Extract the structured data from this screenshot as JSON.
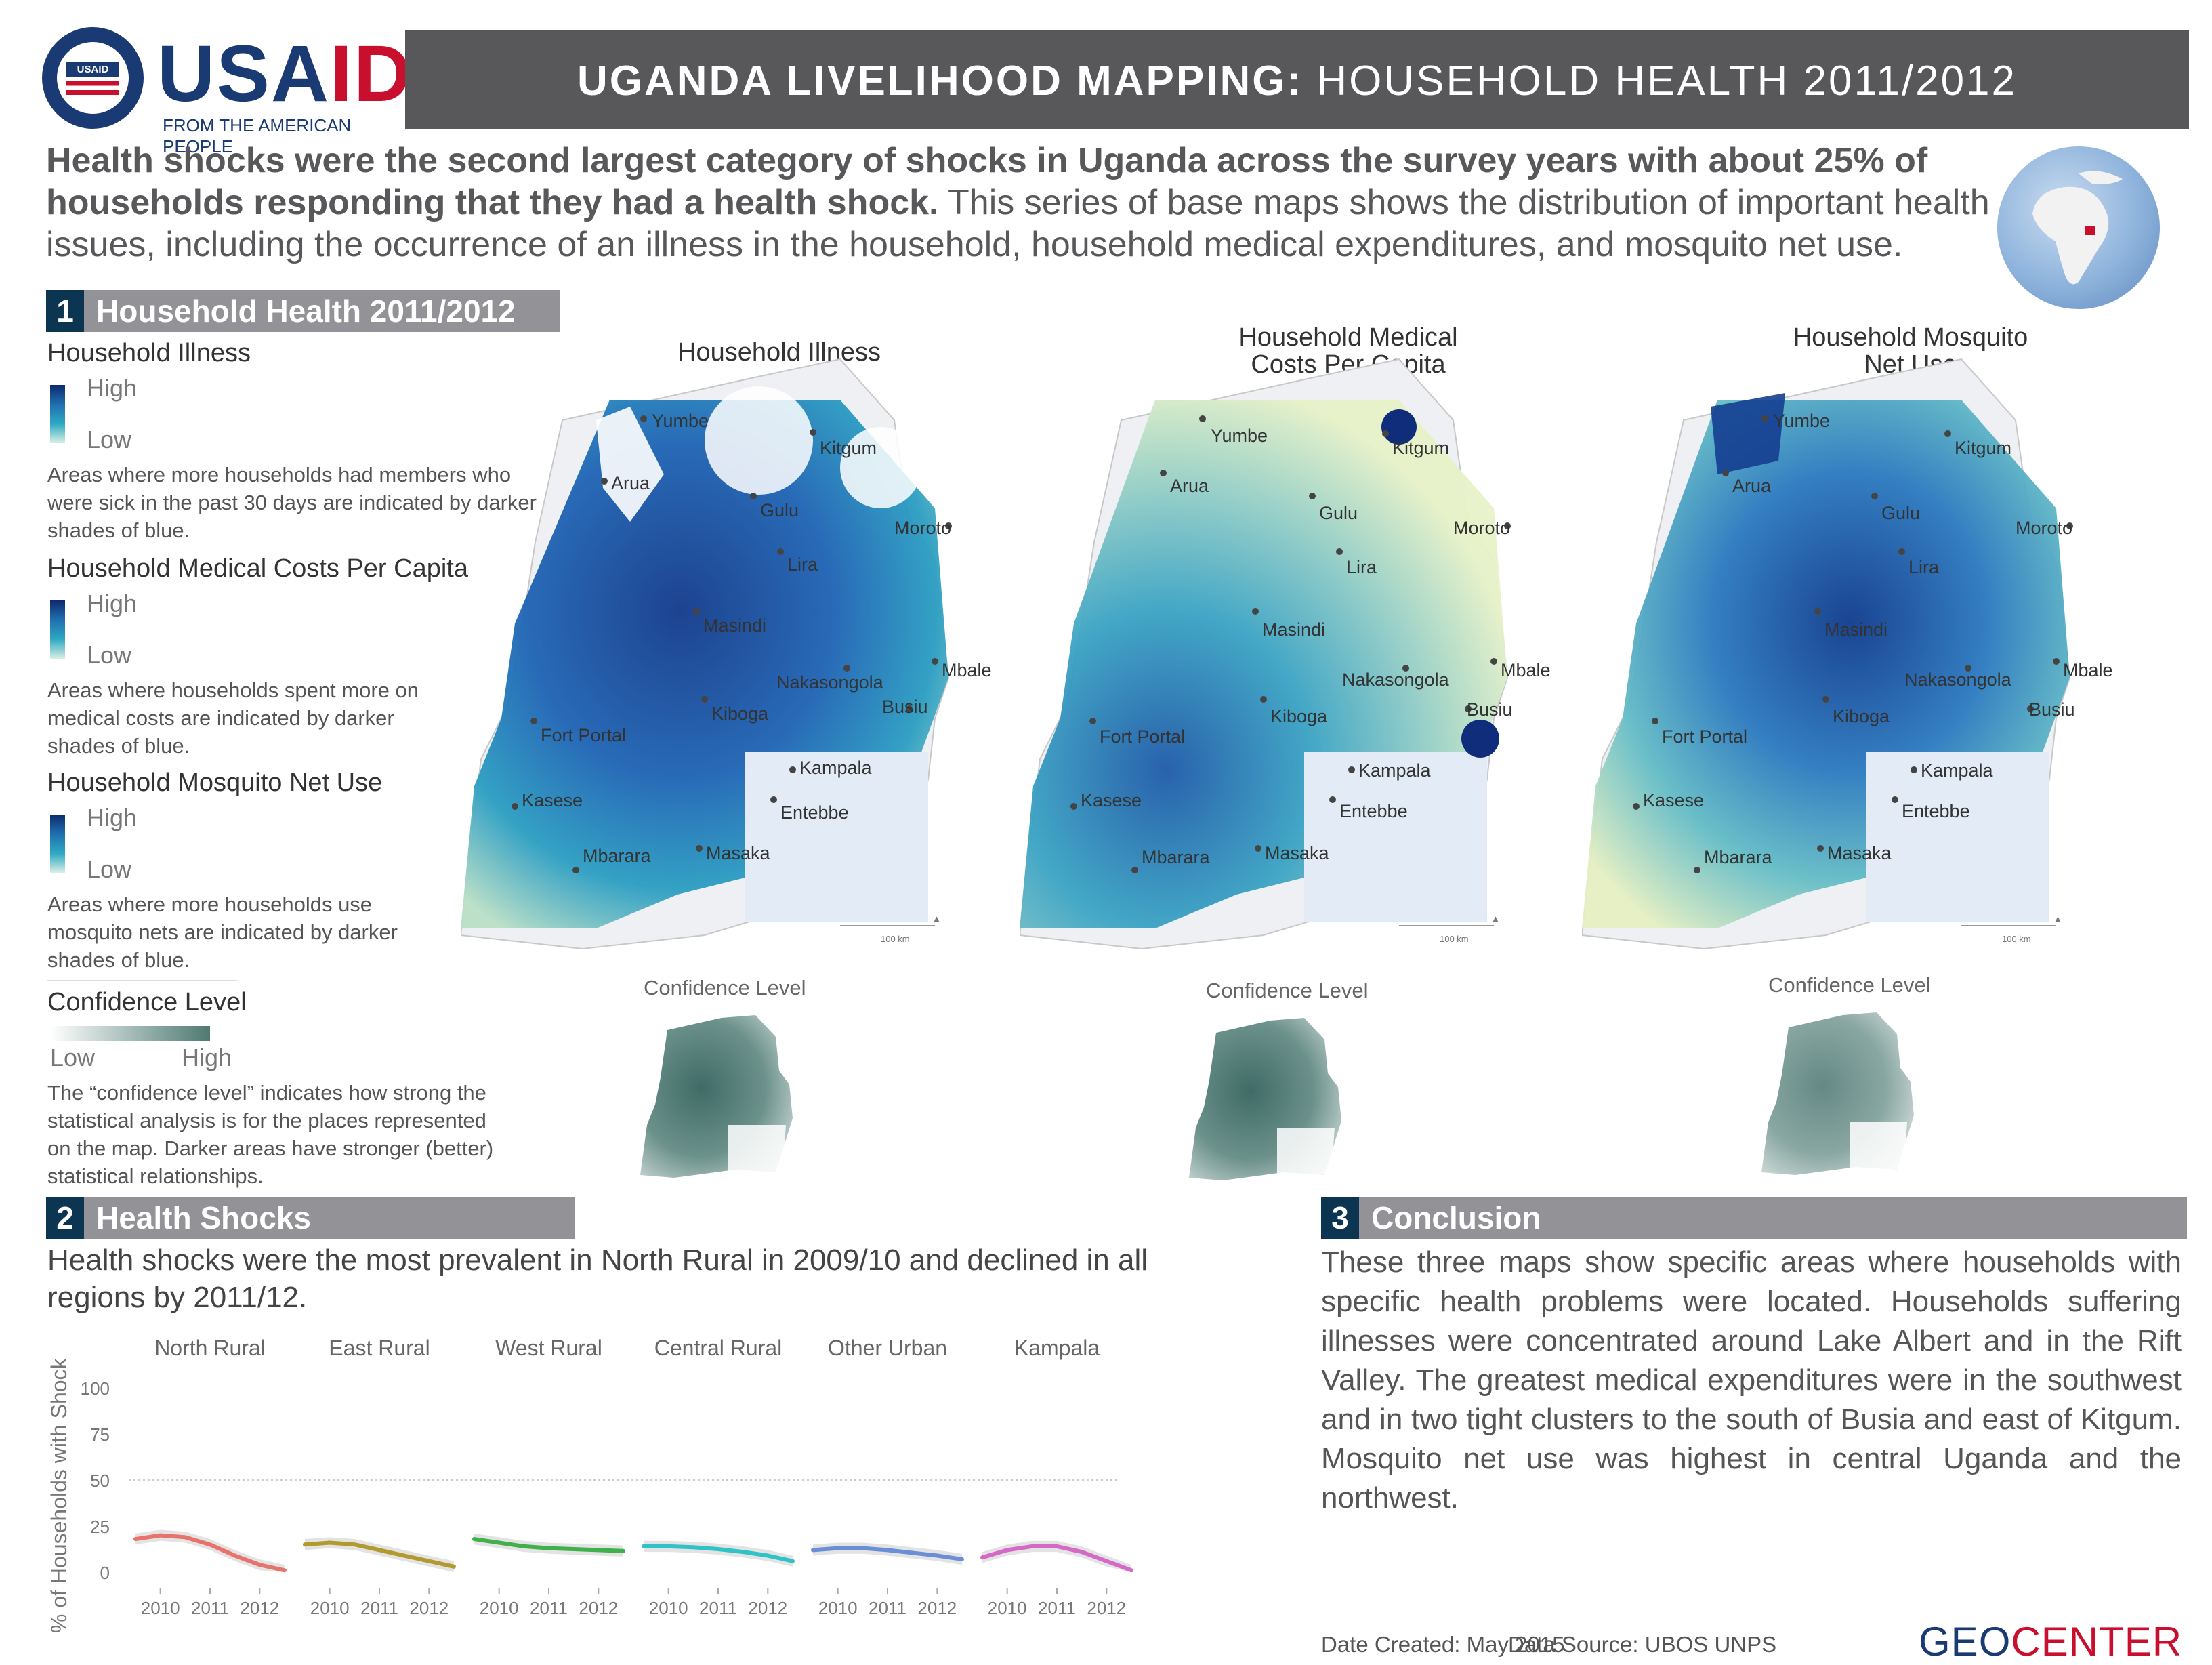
{
  "brand": {
    "logo_text_blue": "USA",
    "logo_text_red": "ID",
    "logo_tagline": "FROM THE AMERICAN PEOPLE",
    "seal_text": "USAID"
  },
  "header": {
    "title_bold": "UGANDA LIVELIHOOD MAPPING:",
    "title_rest": " HOUSEHOLD HEALTH 2011/2012"
  },
  "intro": {
    "bold": "Health shocks were the second largest category of shocks in Uganda across the survey years with about 25% of households responding that they had a health shock.",
    "rest": " This series of base maps shows the distribution of important health issues, including the occurrence of an illness in the household, household medical expenditures, and mosquito net use."
  },
  "section1": {
    "number": "1",
    "label": "Household Health 2011/2012",
    "legends": [
      {
        "title": "Household Illness",
        "high": "High",
        "low": "Low",
        "desc": "Areas where more households had members who were sick in the past 30 days are indicated by darker shades of blue."
      },
      {
        "title": "Household Medical Costs Per Capita",
        "high": "High",
        "low": "Low",
        "desc": "Areas where households spent more on medical costs are indicated by darker shades of blue."
      },
      {
        "title": "Household Mosquito Net Use",
        "high": "High",
        "low": "Low",
        "desc": "Areas where more households use mosquito nets are indicated by darker shades of blue."
      }
    ],
    "confidence": {
      "title": "Confidence Level",
      "low": "Low",
      "high": "High",
      "desc": "The “confidence level” indicates how strong the statistical analysis is for the places represented on the map. Darker areas have stronger (better) statistical relationships."
    }
  },
  "maps": [
    {
      "title_line1": "Household Illness",
      "title_line2": "",
      "scale": "100 km",
      "confidence_title": "Confidence Level"
    },
    {
      "title_line1": "Household Medical",
      "title_line2": "Costs Per Capita",
      "scale": "100 km",
      "confidence_title": "Confidence Level"
    },
    {
      "title_line1": "Household Mosquito",
      "title_line2": "Net Use",
      "scale": "100 km",
      "confidence_title": "Confidence Level"
    }
  ],
  "cities": [
    "Yumbe",
    "Kitgum",
    "Arua",
    "Gulu",
    "Moroto",
    "Lira",
    "Masindi",
    "Nakasongola",
    "Mbale",
    "Busiu",
    "Kiboga",
    "Fort Portal",
    "Kampala",
    "Kasese",
    "Entebbe",
    "Mbarara",
    "Masaka"
  ],
  "section2": {
    "number": "2",
    "label": "Health Shocks",
    "desc": "Health shocks were the most prevalent in North Rural in 2009/10 and declined in all regions by 2011/12."
  },
  "chart_data": {
    "type": "line",
    "ylabel": "% of Households with Shock",
    "ylim": [
      0,
      100
    ],
    "yticks": [
      0,
      25,
      50,
      75,
      100
    ],
    "xticks": [
      "2010",
      "2011",
      "2012"
    ],
    "x": [
      2009.5,
      2010.0,
      2010.5,
      2011.0,
      2011.5,
      2012.0,
      2012.5
    ],
    "series": [
      {
        "name": "North Rural",
        "color": "#e8736b",
        "values": [
          18,
          20,
          19,
          15,
          9,
          4,
          1
        ]
      },
      {
        "name": "East Rural",
        "color": "#b39a2c",
        "values": [
          15,
          16,
          15,
          12,
          9,
          6,
          3
        ]
      },
      {
        "name": "West Rural",
        "color": "#3fb04a",
        "values": [
          18,
          16,
          14,
          13,
          12.5,
          12,
          11.5
        ]
      },
      {
        "name": "Central Rural",
        "color": "#2fc2c7",
        "values": [
          14,
          14,
          13.5,
          12.5,
          11,
          9,
          6
        ]
      },
      {
        "name": "Other Urban",
        "color": "#6b8fd6",
        "values": [
          12,
          13,
          13,
          12,
          10.5,
          9,
          7
        ]
      },
      {
        "name": "Kampala",
        "color": "#d46ac5",
        "values": [
          8,
          12,
          14,
          14,
          11,
          6,
          1
        ]
      }
    ]
  },
  "section3": {
    "number": "3",
    "label": "Conclusion",
    "text": "These three maps show specific areas where households with specific health problems were located. Households suffering illnesses were concentrated around Lake Albert and in the Rift Valley. The greatest medical expenditures were in the southwest and in two tight clusters to the south of Busia and east of Kitgum. Mosquito net use was highest in central Uganda and the northwest."
  },
  "footer": {
    "date": "Date Created: May 2015",
    "source": "Data Source: UBOS UNPS",
    "geo1": "GEO",
    "geo2": "CENTER"
  }
}
